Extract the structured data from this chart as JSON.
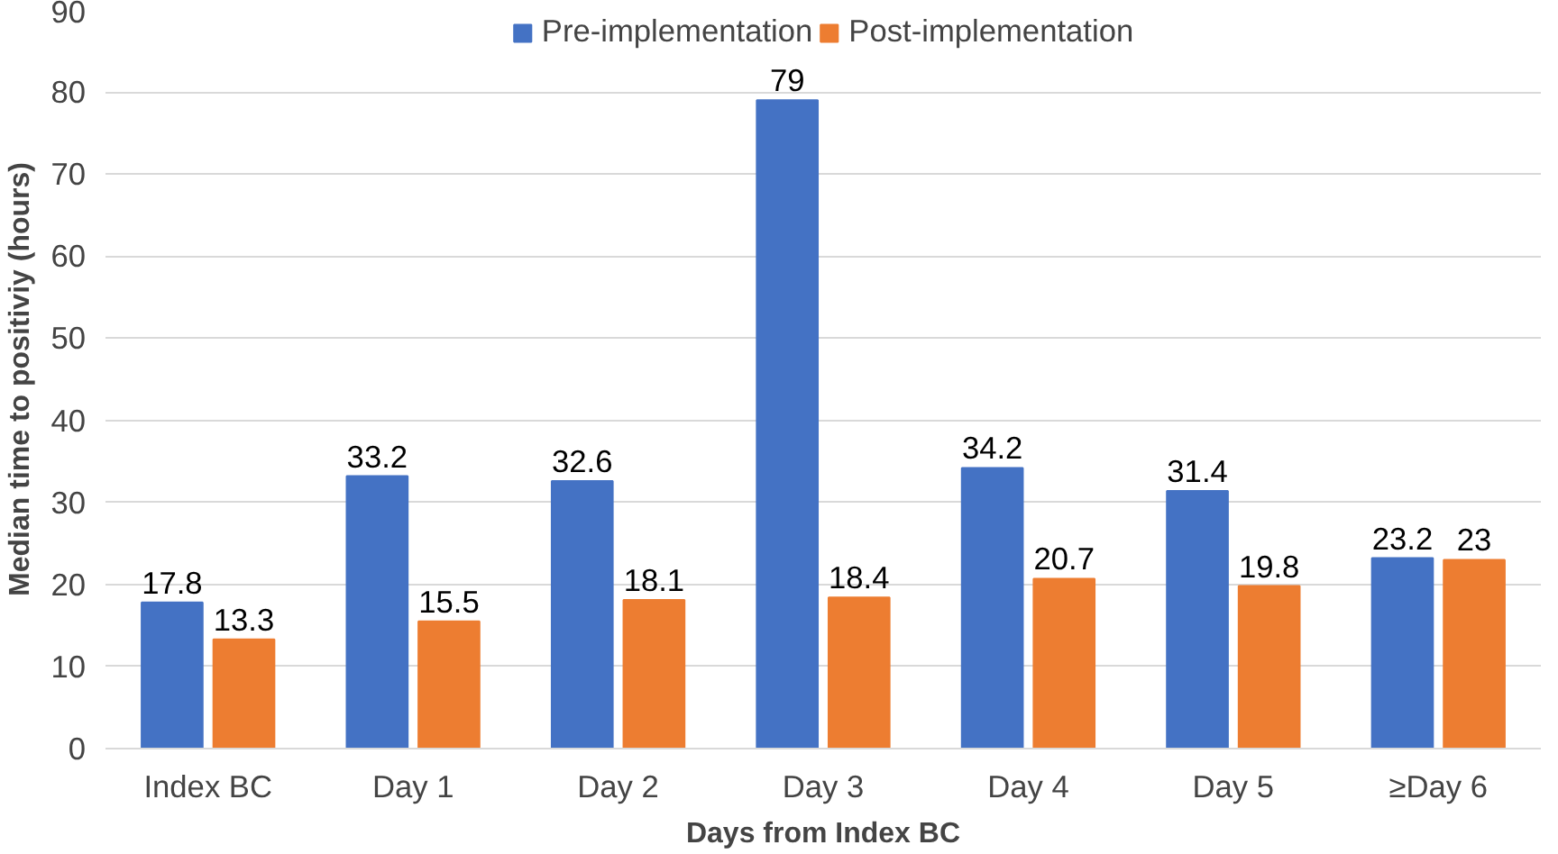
{
  "chart_data": {
    "type": "bar",
    "xlabel": "Days from Index BC",
    "ylabel": "Median time to positiviy (hours)",
    "categories": [
      "Index BC",
      "Day 1",
      "Day 2",
      "Day 3",
      "Day 4",
      "Day 5",
      "≥Day 6"
    ],
    "series": [
      {
        "name": "Pre-implementation",
        "color": "#4472c4",
        "values": [
          17.8,
          33.2,
          32.6,
          79,
          34.2,
          31.4,
          23.2
        ]
      },
      {
        "name": "Post-implementation",
        "color": "#ed7d31",
        "values": [
          13.3,
          15.5,
          18.1,
          18.4,
          20.7,
          19.8,
          23
        ]
      }
    ],
    "ylim": [
      0,
      90
    ],
    "yticks": [
      0,
      10,
      20,
      30,
      40,
      50,
      60,
      70,
      80,
      90
    ],
    "grid": "y",
    "legend": "top",
    "data_labels": true
  }
}
